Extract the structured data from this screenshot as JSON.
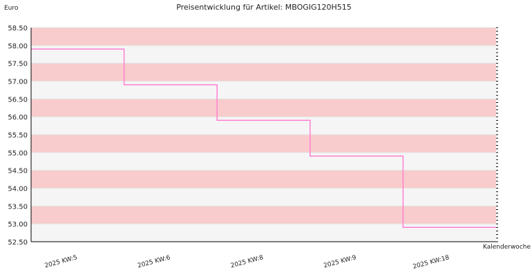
{
  "chart_data": {
    "type": "line",
    "title": "Preisentwicklung für Artikel: MBOGIG120H515",
    "ylabel": "Euro",
    "xlabel": "Kalenderwoche",
    "categories": [
      "2025 KW:5",
      "2025 KW:6",
      "2025 KW:8",
      "2025 KW:9",
      "2025 KW:18"
    ],
    "series": [
      {
        "values": [
          57.9,
          56.9,
          55.9,
          54.9,
          52.9
        ]
      }
    ],
    "y_ticks": [
      "58.50",
      "58.00",
      "57.50",
      "57.00",
      "56.50",
      "56.00",
      "55.50",
      "55.00",
      "54.50",
      "54.00",
      "53.50",
      "53.00",
      "52.50"
    ],
    "ylim": [
      52.5,
      58.5
    ],
    "step": true,
    "grid": true,
    "colors": {
      "line": "#ff7fd0",
      "band_pink": "#f8cccc",
      "band_light": "#f5f5f5",
      "axis": "#000000"
    }
  }
}
